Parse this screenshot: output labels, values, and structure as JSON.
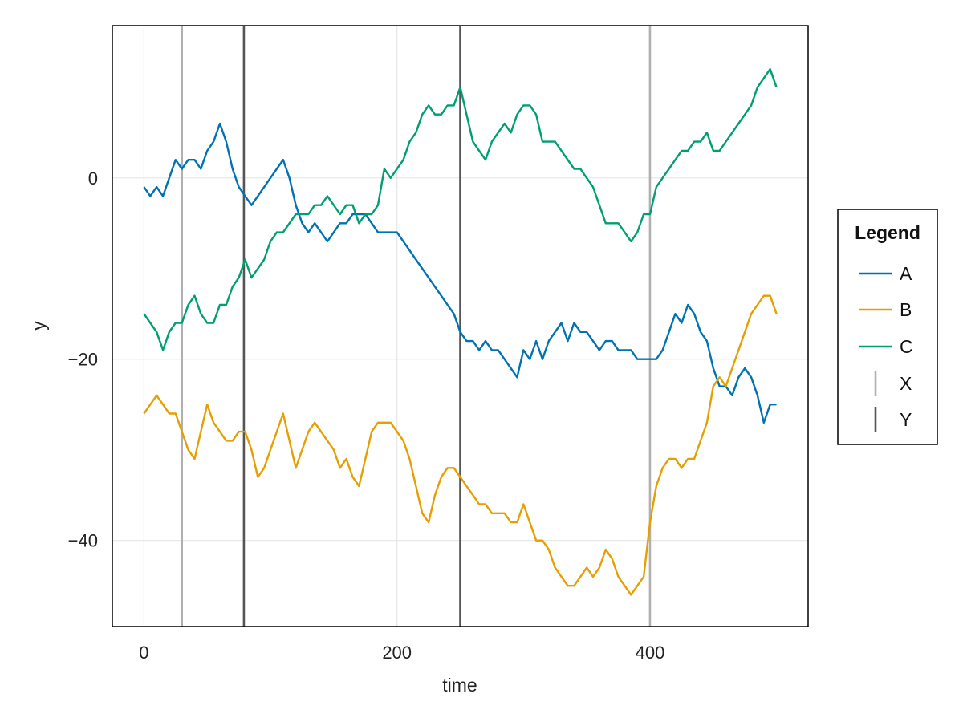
{
  "chart_data": {
    "type": "line",
    "xlabel": "time",
    "ylabel": "y",
    "xlim": [
      -25,
      525
    ],
    "ylim": [
      -49.5,
      16.8
    ],
    "xticks": [
      0,
      200,
      400
    ],
    "yticks": [
      -40,
      -20,
      0
    ],
    "xtick_labels": [
      "0",
      "200",
      "400"
    ],
    "ytick_labels": [
      "−40",
      "−20",
      "0"
    ],
    "grid": true,
    "legend": {
      "title": "Legend",
      "placement": "right",
      "entries": [
        {
          "label": "A",
          "kind": "line",
          "color": "#0072B2"
        },
        {
          "label": "B",
          "kind": "line",
          "color": "#E69F00"
        },
        {
          "label": "C",
          "kind": "line",
          "color": "#009E73"
        },
        {
          "label": "X",
          "kind": "vline",
          "color": "#b0b0b0"
        },
        {
          "label": "Y",
          "kind": "vline",
          "color": "#555555"
        }
      ]
    },
    "vlines": [
      {
        "label": "X",
        "x": [
          30,
          400
        ],
        "color": "#b0b0b0"
      },
      {
        "label": "Y",
        "x": [
          79,
          250
        ],
        "color": "#555555"
      }
    ],
    "series": [
      {
        "name": "A",
        "color": "#0072B2",
        "x": [
          0,
          5,
          10,
          15,
          20,
          25,
          30,
          35,
          40,
          45,
          50,
          55,
          60,
          65,
          70,
          75,
          80,
          85,
          90,
          95,
          100,
          105,
          110,
          115,
          120,
          125,
          130,
          135,
          140,
          145,
          150,
          155,
          160,
          165,
          170,
          175,
          180,
          185,
          190,
          195,
          200,
          205,
          210,
          215,
          220,
          225,
          230,
          235,
          240,
          245,
          250,
          255,
          260,
          265,
          270,
          275,
          280,
          285,
          290,
          295,
          300,
          305,
          310,
          315,
          320,
          325,
          330,
          335,
          340,
          345,
          350,
          355,
          360,
          365,
          370,
          375,
          380,
          385,
          390,
          395,
          400,
          405,
          410,
          415,
          420,
          425,
          430,
          435,
          440,
          445,
          450,
          455,
          460,
          465,
          470,
          475,
          480,
          485,
          490,
          495,
          500
        ],
        "y": [
          -1,
          -2,
          -1,
          -2,
          0,
          2,
          1,
          2,
          2,
          1,
          3,
          4,
          6,
          4,
          1,
          -1,
          -2,
          -3,
          -2,
          -1,
          0,
          1,
          2,
          0,
          -3,
          -5,
          -6,
          -5,
          -6,
          -7,
          -6,
          -5,
          -5,
          -4,
          -4,
          -4,
          -5,
          -6,
          -6,
          -6,
          -6,
          -7,
          -8,
          -9,
          -10,
          -11,
          -12,
          -13,
          -14,
          -15,
          -17,
          -18,
          -18,
          -19,
          -18,
          -19,
          -19,
          -20,
          -21,
          -22,
          -19,
          -20,
          -18,
          -20,
          -18,
          -17,
          -16,
          -18,
          -16,
          -17,
          -17,
          -18,
          -19,
          -18,
          -18,
          -19,
          -19,
          -19,
          -20,
          -20,
          -20,
          -20,
          -19,
          -17,
          -15,
          -16,
          -14,
          -15,
          -17,
          -18,
          -21,
          -23,
          -23,
          -24,
          -22,
          -21,
          -22,
          -24,
          -27,
          -25,
          -25
        ]
      },
      {
        "name": "B",
        "color": "#E69F00",
        "x": [
          0,
          5,
          10,
          15,
          20,
          25,
          30,
          35,
          40,
          45,
          50,
          55,
          60,
          65,
          70,
          75,
          80,
          85,
          90,
          95,
          100,
          105,
          110,
          115,
          120,
          125,
          130,
          135,
          140,
          145,
          150,
          155,
          160,
          165,
          170,
          175,
          180,
          185,
          190,
          195,
          200,
          205,
          210,
          215,
          220,
          225,
          230,
          235,
          240,
          245,
          250,
          255,
          260,
          265,
          270,
          275,
          280,
          285,
          290,
          295,
          300,
          305,
          310,
          315,
          320,
          325,
          330,
          335,
          340,
          345,
          350,
          355,
          360,
          365,
          370,
          375,
          380,
          385,
          390,
          395,
          400,
          405,
          410,
          415,
          420,
          425,
          430,
          435,
          440,
          445,
          450,
          455,
          460,
          465,
          470,
          475,
          480,
          485,
          490,
          495,
          500
        ],
        "y": [
          -26,
          -25,
          -24,
          -25,
          -26,
          -26,
          -28,
          -30,
          -31,
          -28,
          -25,
          -27,
          -28,
          -29,
          -29,
          -28,
          -28,
          -30,
          -33,
          -32,
          -30,
          -28,
          -26,
          -29,
          -32,
          -30,
          -28,
          -27,
          -28,
          -29,
          -30,
          -32,
          -31,
          -33,
          -34,
          -31,
          -28,
          -27,
          -27,
          -27,
          -28,
          -29,
          -31,
          -34,
          -37,
          -38,
          -35,
          -33,
          -32,
          -32,
          -33,
          -34,
          -35,
          -36,
          -36,
          -37,
          -37,
          -37,
          -38,
          -38,
          -36,
          -38,
          -40,
          -40,
          -41,
          -43,
          -44,
          -45,
          -45,
          -44,
          -43,
          -44,
          -43,
          -41,
          -42,
          -44,
          -45,
          -46,
          -45,
          -44,
          -38,
          -34,
          -32,
          -31,
          -31,
          -32,
          -31,
          -31,
          -29,
          -27,
          -23,
          -22,
          -23,
          -21,
          -19,
          -17,
          -15,
          -14,
          -13,
          -13,
          -15
        ]
      },
      {
        "name": "C",
        "color": "#009E73",
        "x": [
          0,
          5,
          10,
          15,
          20,
          25,
          30,
          35,
          40,
          45,
          50,
          55,
          60,
          65,
          70,
          75,
          80,
          85,
          90,
          95,
          100,
          105,
          110,
          115,
          120,
          125,
          130,
          135,
          140,
          145,
          150,
          155,
          160,
          165,
          170,
          175,
          180,
          185,
          190,
          195,
          200,
          205,
          210,
          215,
          220,
          225,
          230,
          235,
          240,
          245,
          250,
          255,
          260,
          265,
          270,
          275,
          280,
          285,
          290,
          295,
          300,
          305,
          310,
          315,
          320,
          325,
          330,
          335,
          340,
          345,
          350,
          355,
          360,
          365,
          370,
          375,
          380,
          385,
          390,
          395,
          400,
          405,
          410,
          415,
          420,
          425,
          430,
          435,
          440,
          445,
          450,
          455,
          460,
          465,
          470,
          475,
          480,
          485,
          490,
          495,
          500
        ],
        "y": [
          -15,
          -16,
          -17,
          -19,
          -17,
          -16,
          -16,
          -14,
          -13,
          -15,
          -16,
          -16,
          -14,
          -14,
          -12,
          -11,
          -9,
          -11,
          -10,
          -9,
          -7,
          -6,
          -6,
          -5,
          -4,
          -4,
          -4,
          -3,
          -3,
          -2,
          -3,
          -4,
          -3,
          -3,
          -5,
          -4,
          -4,
          -3,
          1,
          0,
          1,
          2,
          4,
          5,
          7,
          8,
          7,
          7,
          8,
          8,
          10,
          7,
          4,
          3,
          2,
          4,
          5,
          6,
          5,
          7,
          8,
          8,
          7,
          4,
          4,
          4,
          3,
          2,
          1,
          1,
          0,
          -1,
          -3,
          -5,
          -5,
          -5,
          -6,
          -7,
          -6,
          -4,
          -4,
          -1,
          0,
          1,
          2,
          3,
          3,
          4,
          4,
          5,
          3,
          3,
          4,
          5,
          6,
          7,
          8,
          10,
          11,
          12,
          10
        ]
      }
    ]
  }
}
